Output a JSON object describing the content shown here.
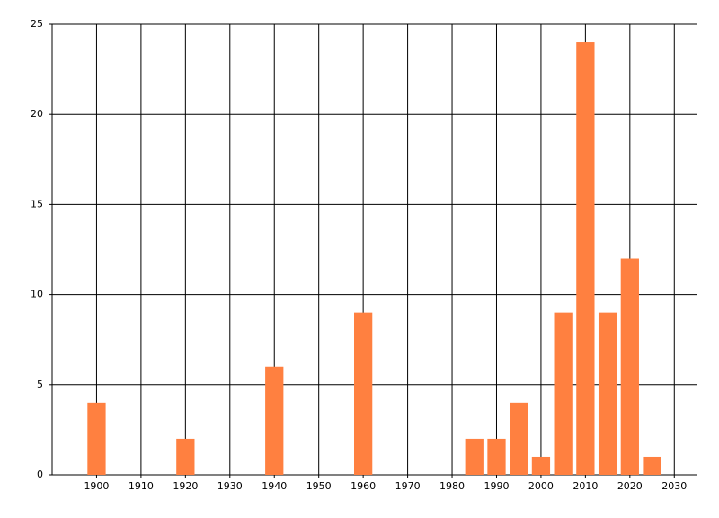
{
  "chart_data": {
    "type": "bar",
    "x": [
      1900,
      1920,
      1940,
      1960,
      1985,
      1990,
      1995,
      2000,
      2005,
      2010,
      2015,
      2020,
      2025
    ],
    "values": [
      4,
      2,
      6,
      9,
      2,
      2,
      4,
      1,
      9,
      24,
      9,
      12,
      1
    ],
    "color": "#ff8040",
    "xlim": [
      1890,
      2035
    ],
    "xticks": [
      1900,
      1910,
      1920,
      1930,
      1940,
      1950,
      1960,
      1970,
      1980,
      1990,
      2000,
      2010,
      2020,
      2030
    ],
    "ylim": [
      0,
      25
    ],
    "yticks": [
      0,
      5,
      10,
      15,
      20,
      25
    ],
    "grid": true
  }
}
